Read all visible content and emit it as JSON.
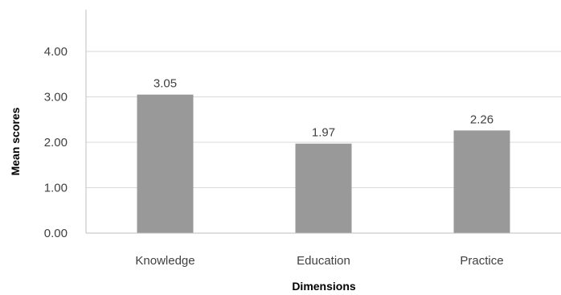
{
  "chart_data": {
    "type": "bar",
    "categories": [
      "Knowledge",
      "Education",
      "Practice"
    ],
    "values": [
      3.05,
      1.97,
      2.26
    ],
    "data_labels": [
      "3.05",
      "1.97",
      "2.26"
    ],
    "xlabel": "Dimensions",
    "ylabel": "Mean scores",
    "ylim": [
      0,
      5
    ],
    "yticks": [
      0,
      1,
      2,
      3,
      4
    ],
    "ytick_labels": [
      "0.00",
      "1.00",
      "2.00",
      "3.00",
      "4.00"
    ],
    "grid": true,
    "legend": "none",
    "colors": {
      "bar": "#999999",
      "grid": "#d9d9d9",
      "axis": "#bfbfbf"
    }
  }
}
